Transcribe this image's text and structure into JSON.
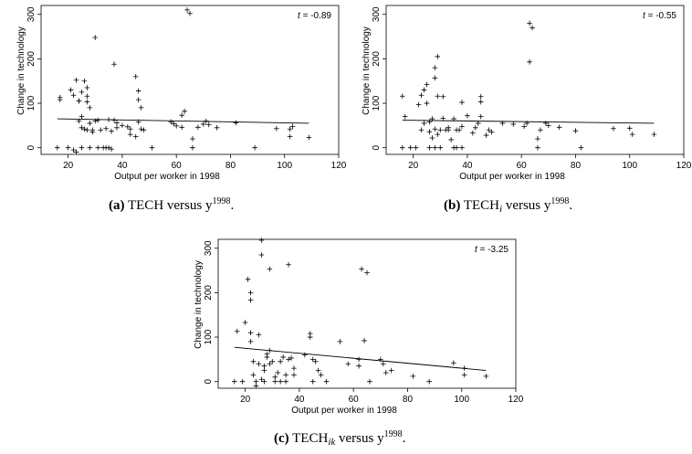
{
  "chart_data": [
    {
      "type": "scatter",
      "panel_label": "(a)",
      "caption_main": "TECH versus y",
      "caption_sub": "",
      "caption_sup": "1998",
      "caption_end": ".",
      "annotation": "t = -0.89",
      "annotation_var": "t",
      "annotation_value": "= -0.89",
      "xlabel": "Output per worker in 1998",
      "ylabel": "Change in technology",
      "xlim": [
        10,
        120
      ],
      "ylim": [
        -15,
        320
      ],
      "xticks": [
        20,
        40,
        60,
        80,
        100,
        120
      ],
      "yticks": [
        0,
        100,
        200,
        300
      ],
      "fit_line": [
        [
          16,
          65
        ],
        [
          109,
          55
        ]
      ],
      "points": [
        [
          16,
          0
        ],
        [
          17,
          108
        ],
        [
          17,
          113
        ],
        [
          20,
          0
        ],
        [
          21,
          130
        ],
        [
          22,
          118
        ],
        [
          22,
          -5
        ],
        [
          23,
          -10
        ],
        [
          23,
          152
        ],
        [
          24,
          105
        ],
        [
          24,
          60
        ],
        [
          24,
          105
        ],
        [
          25,
          0
        ],
        [
          25,
          45
        ],
        [
          25,
          70
        ],
        [
          25,
          125
        ],
        [
          26,
          150
        ],
        [
          26,
          42
        ],
        [
          27,
          40
        ],
        [
          27,
          135
        ],
        [
          27,
          116
        ],
        [
          27,
          103
        ],
        [
          28,
          0
        ],
        [
          28,
          55
        ],
        [
          28,
          90
        ],
        [
          29,
          35
        ],
        [
          29,
          40
        ],
        [
          30,
          248
        ],
        [
          30,
          60
        ],
        [
          31,
          62
        ],
        [
          31,
          0
        ],
        [
          32,
          40
        ],
        [
          33,
          0
        ],
        [
          34,
          0
        ],
        [
          34,
          43
        ],
        [
          35,
          0
        ],
        [
          35,
          63
        ],
        [
          36,
          -3
        ],
        [
          36,
          37
        ],
        [
          37,
          188
        ],
        [
          37,
          62
        ],
        [
          38,
          45
        ],
        [
          38,
          56
        ],
        [
          40,
          50
        ],
        [
          42,
          47
        ],
        [
          43,
          42
        ],
        [
          43,
          30
        ],
        [
          45,
          25
        ],
        [
          45,
          160
        ],
        [
          46,
          128
        ],
        [
          46,
          108
        ],
        [
          46,
          58
        ],
        [
          47,
          90
        ],
        [
          47,
          42
        ],
        [
          48,
          40
        ],
        [
          51,
          0
        ],
        [
          58,
          58
        ],
        [
          59,
          54
        ],
        [
          60,
          49
        ],
        [
          62,
          46
        ],
        [
          62,
          73
        ],
        [
          63,
          82
        ],
        [
          64,
          310
        ],
        [
          65,
          302
        ],
        [
          66,
          0
        ],
        [
          66,
          20
        ],
        [
          68,
          46
        ],
        [
          70,
          53
        ],
        [
          71,
          60
        ],
        [
          72,
          52
        ],
        [
          75,
          45
        ],
        [
          82,
          56
        ],
        [
          89,
          0
        ],
        [
          97,
          43
        ],
        [
          102,
          42
        ],
        [
          102,
          25
        ],
        [
          103,
          48
        ],
        [
          109,
          23
        ]
      ]
    },
    {
      "type": "scatter",
      "panel_label": "(b)",
      "caption_main": "TECH",
      "caption_sub": "i",
      "caption_mid": " versus y",
      "caption_sup": "1998",
      "caption_end": ".",
      "annotation": "t = -0.55",
      "annotation_var": "t",
      "annotation_value": "= -0.55",
      "xlabel": "Output per worker in 1998",
      "ylabel": "Change in technology",
      "xlim": [
        10,
        120
      ],
      "ylim": [
        -15,
        320
      ],
      "xticks": [
        20,
        40,
        60,
        80,
        100,
        120
      ],
      "yticks": [
        0,
        100,
        200,
        300
      ],
      "fit_line": [
        [
          16,
          62
        ],
        [
          109,
          55
        ]
      ],
      "points": [
        [
          16,
          0
        ],
        [
          16,
          116
        ],
        [
          17,
          70
        ],
        [
          19,
          0
        ],
        [
          21,
          0
        ],
        [
          22,
          97
        ],
        [
          23,
          118
        ],
        [
          23,
          40
        ],
        [
          24,
          130
        ],
        [
          24,
          55
        ],
        [
          25,
          142
        ],
        [
          25,
          100
        ],
        [
          26,
          0
        ],
        [
          26,
          36
        ],
        [
          26,
          58
        ],
        [
          27,
          22
        ],
        [
          27,
          65
        ],
        [
          28,
          0
        ],
        [
          28,
          180
        ],
        [
          28,
          157
        ],
        [
          28,
          42
        ],
        [
          29,
          205
        ],
        [
          29,
          116
        ],
        [
          29,
          30
        ],
        [
          30,
          0
        ],
        [
          30,
          40
        ],
        [
          31,
          115
        ],
        [
          31,
          66
        ],
        [
          32,
          40
        ],
        [
          33,
          40
        ],
        [
          33,
          45
        ],
        [
          34,
          18
        ],
        [
          35,
          0
        ],
        [
          35,
          65
        ],
        [
          36,
          40
        ],
        [
          36,
          0
        ],
        [
          37,
          40
        ],
        [
          38,
          0
        ],
        [
          38,
          102
        ],
        [
          38,
          48
        ],
        [
          40,
          72
        ],
        [
          42,
          33
        ],
        [
          43,
          45
        ],
        [
          44,
          55
        ],
        [
          45,
          70
        ],
        [
          45,
          103
        ],
        [
          45,
          115
        ],
        [
          47,
          28
        ],
        [
          48,
          40
        ],
        [
          49,
          35
        ],
        [
          53,
          55
        ],
        [
          57,
          53
        ],
        [
          61,
          48
        ],
        [
          62,
          55
        ],
        [
          63,
          280
        ],
        [
          63,
          193
        ],
        [
          64,
          270
        ],
        [
          66,
          0
        ],
        [
          66,
          20
        ],
        [
          67,
          40
        ],
        [
          69,
          55
        ],
        [
          70,
          50
        ],
        [
          74,
          46
        ],
        [
          80,
          38
        ],
        [
          82,
          0
        ],
        [
          94,
          43
        ],
        [
          100,
          44
        ],
        [
          101,
          30
        ],
        [
          109,
          30
        ]
      ]
    },
    {
      "type": "scatter",
      "panel_label": "(c)",
      "caption_main": "TECH",
      "caption_sub": "ik",
      "caption_mid": " versus y",
      "caption_sup": "1998",
      "caption_end": ".",
      "annotation": "t = -3.25",
      "annotation_var": "t",
      "annotation_value": "= -3.25",
      "xlabel": "Output per worker in 1998",
      "ylabel": "Change in technology",
      "xlim": [
        10,
        120
      ],
      "ylim": [
        -15,
        320
      ],
      "xticks": [
        20,
        40,
        60,
        80,
        100,
        120
      ],
      "yticks": [
        0,
        100,
        200,
        300
      ],
      "fit_line": [
        [
          16,
          77
        ],
        [
          109,
          25
        ]
      ],
      "points": [
        [
          16,
          0
        ],
        [
          17,
          113
        ],
        [
          19,
          0
        ],
        [
          20,
          133
        ],
        [
          21,
          230
        ],
        [
          22,
          200
        ],
        [
          22,
          183
        ],
        [
          22,
          110
        ],
        [
          22,
          90
        ],
        [
          23,
          45
        ],
        [
          23,
          15
        ],
        [
          24,
          0
        ],
        [
          24,
          -10
        ],
        [
          25,
          105
        ],
        [
          25,
          40
        ],
        [
          26,
          318
        ],
        [
          26,
          285
        ],
        [
          26,
          5
        ],
        [
          27,
          35
        ],
        [
          27,
          0
        ],
        [
          27,
          25
        ],
        [
          28,
          62
        ],
        [
          28,
          55
        ],
        [
          29,
          253
        ],
        [
          29,
          70
        ],
        [
          29,
          40
        ],
        [
          30,
          45
        ],
        [
          31,
          10
        ],
        [
          31,
          0
        ],
        [
          32,
          20
        ],
        [
          33,
          45
        ],
        [
          33,
          0
        ],
        [
          34,
          55
        ],
        [
          35,
          0
        ],
        [
          35,
          15
        ],
        [
          36,
          263
        ],
        [
          36,
          50
        ],
        [
          37,
          53
        ],
        [
          38,
          30
        ],
        [
          38,
          15
        ],
        [
          42,
          60
        ],
        [
          44,
          108
        ],
        [
          44,
          100
        ],
        [
          45,
          0
        ],
        [
          45,
          50
        ],
        [
          46,
          45
        ],
        [
          47,
          25
        ],
        [
          48,
          15
        ],
        [
          50,
          0
        ],
        [
          55,
          90
        ],
        [
          58,
          40
        ],
        [
          62,
          35
        ],
        [
          62,
          50
        ],
        [
          63,
          253
        ],
        [
          64,
          92
        ],
        [
          65,
          245
        ],
        [
          66,
          0
        ],
        [
          70,
          50
        ],
        [
          71,
          40
        ],
        [
          72,
          20
        ],
        [
          74,
          25
        ],
        [
          82,
          12
        ],
        [
          88,
          0
        ],
        [
          97,
          42
        ],
        [
          101,
          30
        ],
        [
          101,
          15
        ],
        [
          109,
          12
        ]
      ]
    }
  ]
}
